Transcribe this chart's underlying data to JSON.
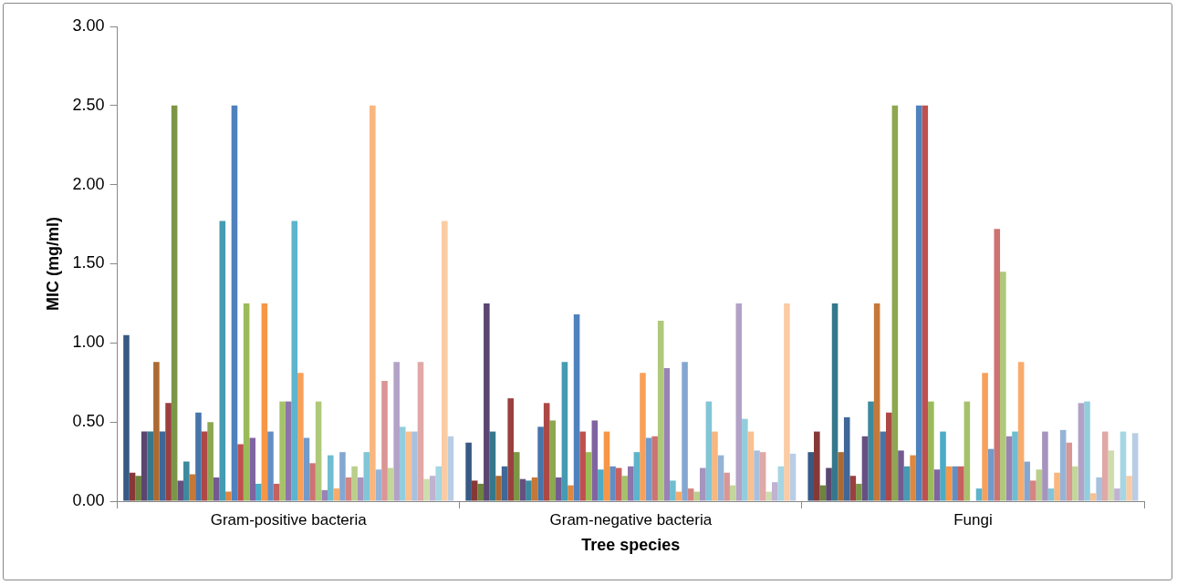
{
  "chart_data": {
    "type": "bar",
    "xlabel": "Tree species",
    "ylabel": "MIC (mg/ml)",
    "categories": [
      "Gram-positive bacteria",
      "Gram-negative bacteria",
      "Fungi"
    ],
    "ylim": [
      0,
      3
    ],
    "yticks": [
      {
        "value": 0,
        "label": "0.00"
      },
      {
        "value": 0.5,
        "label": "0.50"
      },
      {
        "value": 1,
        "label": "1.00"
      },
      {
        "value": 1.5,
        "label": "1.50"
      },
      {
        "value": 2,
        "label": "2.00"
      },
      {
        "value": 2.5,
        "label": "2.50"
      },
      {
        "value": 3,
        "label": "3.00"
      }
    ],
    "grid": false,
    "legend": false,
    "series": [
      {
        "color": "#375a84",
        "values": [
          1.05,
          0.37,
          0.31
        ]
      },
      {
        "color": "#863836",
        "values": [
          0.18,
          0.13,
          0.44
        ]
      },
      {
        "color": "#6d833e",
        "values": [
          0.16,
          0.11,
          0.1
        ]
      },
      {
        "color": "#5a4671",
        "values": [
          0.44,
          1.25,
          0.21
        ]
      },
      {
        "color": "#35788b",
        "values": [
          0.44,
          0.44,
          1.25
        ]
      },
      {
        "color": "#ad6931",
        "values": [
          0.88,
          0.16,
          0.31
        ]
      },
      {
        "color": "#3f6797",
        "values": [
          0.44,
          0.22,
          0.53
        ]
      },
      {
        "color": "#9a403e",
        "values": [
          0.62,
          0.65,
          0.16
        ]
      },
      {
        "color": "#7c9647",
        "values": [
          2.5,
          0.31,
          0.11
        ]
      },
      {
        "color": "#665082",
        "values": [
          0.13,
          0.14,
          0.41
        ]
      },
      {
        "color": "#3c8a9e",
        "values": [
          0.25,
          0.13,
          0.63
        ]
      },
      {
        "color": "#c67838",
        "values": [
          0.17,
          0.15,
          1.25
        ]
      },
      {
        "color": "#4774aa",
        "values": [
          0.56,
          0.47,
          0.44
        ]
      },
      {
        "color": "#ad4845",
        "values": [
          0.44,
          0.62,
          0.56
        ]
      },
      {
        "color": "#8ca850",
        "values": [
          0.5,
          0.51,
          2.5
        ]
      },
      {
        "color": "#735a92",
        "values": [
          0.15,
          0.15,
          0.32
        ]
      },
      {
        "color": "#449bb2",
        "values": [
          1.77,
          0.88,
          0.22
        ]
      },
      {
        "color": "#de873f",
        "values": [
          0.06,
          0.1,
          0.29
        ]
      },
      {
        "color": "#4f81bd",
        "values": [
          2.5,
          1.18,
          2.5
        ]
      },
      {
        "color": "#c0504d",
        "values": [
          0.36,
          0.44,
          2.5
        ]
      },
      {
        "color": "#9bbb59",
        "values": [
          1.25,
          0.31,
          0.63
        ]
      },
      {
        "color": "#8064a2",
        "values": [
          0.4,
          0.51,
          0.2
        ]
      },
      {
        "color": "#4bacc6",
        "values": [
          0.11,
          0.2,
          0.44
        ]
      },
      {
        "color": "#f79646",
        "values": [
          1.25,
          0.44,
          0.22
        ]
      },
      {
        "color": "#618ec4",
        "values": [
          0.44,
          0.22,
          0.22
        ]
      },
      {
        "color": "#c6615f",
        "values": [
          0.11,
          0.21,
          0.22
        ]
      },
      {
        "color": "#a5c26a",
        "values": [
          0.63,
          0.16,
          0.63
        ]
      },
      {
        "color": "#8d74ab",
        "values": [
          0.63,
          0.22,
          null
        ]
      },
      {
        "color": "#5db4cc",
        "values": [
          1.77,
          0.31,
          0.08
        ]
      },
      {
        "color": "#f8a059",
        "values": [
          0.81,
          0.81,
          0.81
        ]
      },
      {
        "color": "#729aca",
        "values": [
          0.4,
          0.4,
          0.33
        ]
      },
      {
        "color": "#cd7371",
        "values": [
          0.24,
          0.41,
          1.72
        ]
      },
      {
        "color": "#afc97a",
        "values": [
          0.63,
          1.14,
          1.45
        ]
      },
      {
        "color": "#9983b5",
        "values": [
          0.07,
          0.84,
          0.41
        ]
      },
      {
        "color": "#6fbdd1",
        "values": [
          0.29,
          0.13,
          0.44
        ]
      },
      {
        "color": "#f9ab6b",
        "values": [
          0.08,
          0.06,
          0.88
        ]
      },
      {
        "color": "#84a7d1",
        "values": [
          0.31,
          0.88,
          0.25
        ]
      },
      {
        "color": "#d38582",
        "values": [
          0.15,
          0.08,
          0.13
        ]
      },
      {
        "color": "#b9cf8b",
        "values": [
          0.22,
          0.06,
          0.2
        ]
      },
      {
        "color": "#a693be",
        "values": [
          0.15,
          0.21,
          0.44
        ]
      },
      {
        "color": "#81c5d7",
        "values": [
          0.31,
          0.63,
          0.08
        ]
      },
      {
        "color": "#f9b67d",
        "values": [
          2.5,
          0.44,
          0.18
        ]
      },
      {
        "color": "#95b3d7",
        "values": [
          0.2,
          0.29,
          0.45
        ]
      },
      {
        "color": "#d99694",
        "values": [
          0.76,
          0.18,
          0.37
        ]
      },
      {
        "color": "#c3d69b",
        "values": [
          0.21,
          0.1,
          0.22
        ]
      },
      {
        "color": "#b3a2c7",
        "values": [
          0.88,
          1.25,
          0.62
        ]
      },
      {
        "color": "#93cddd",
        "values": [
          0.47,
          0.52,
          0.63
        ]
      },
      {
        "color": "#fac090",
        "values": [
          0.44,
          0.44,
          0.05
        ]
      },
      {
        "color": "#a7c0de",
        "values": [
          0.44,
          0.32,
          0.15
        ]
      },
      {
        "color": "#e0a8a6",
        "values": [
          0.88,
          0.31,
          0.44
        ]
      },
      {
        "color": "#cdddac",
        "values": [
          0.14,
          0.06,
          0.32
        ]
      },
      {
        "color": "#c0b2d1",
        "values": [
          0.16,
          0.12,
          0.08
        ]
      },
      {
        "color": "#a5d6e3",
        "values": [
          0.22,
          0.22,
          0.44
        ]
      },
      {
        "color": "#fbcba3",
        "values": [
          1.77,
          1.25,
          0.16
        ]
      },
      {
        "color": "#b9cde5",
        "values": [
          0.41,
          0.3,
          0.43
        ]
      }
    ]
  }
}
